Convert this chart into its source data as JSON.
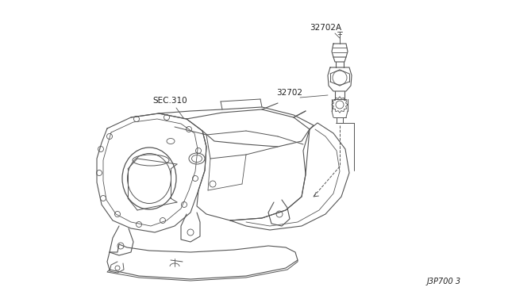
{
  "background_color": "#ffffff",
  "line_color": "#555555",
  "text_color": "#222222",
  "label_32702A": "32702A",
  "label_32702": "32702",
  "label_sec310": "SEC.310",
  "label_bottom_right": "J3P700 3",
  "figsize": [
    6.4,
    3.72
  ],
  "dpi": 100
}
